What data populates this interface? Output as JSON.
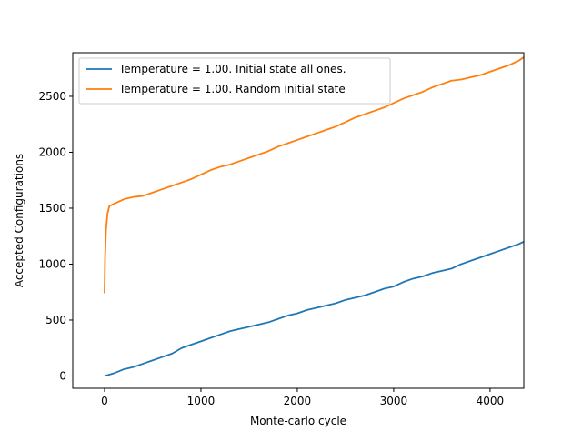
{
  "chart_data": {
    "type": "line",
    "title": "",
    "xlabel": "Monte-carlo cycle",
    "ylabel": "Accepted Configurations",
    "xlim": [
      -330,
      4350
    ],
    "ylim": [
      -110,
      2890
    ],
    "xticks": [
      0,
      1000,
      2000,
      3000,
      4000
    ],
    "yticks": [
      0,
      500,
      1000,
      1500,
      2000,
      2500
    ],
    "xtick_labels": [
      "0",
      "1000",
      "2000",
      "3000",
      "4000"
    ],
    "ytick_labels": [
      "0",
      "500",
      "1000",
      "1500",
      "2000",
      "2500"
    ],
    "grid": false,
    "legend_position": "top-left",
    "series": [
      {
        "name": "Temperature = 1.00. Initial state all ones.",
        "color": "#1f77b4",
        "x": [
          0,
          100,
          200,
          300,
          400,
          500,
          600,
          700,
          800,
          900,
          1000,
          1100,
          1200,
          1300,
          1400,
          1500,
          1600,
          1700,
          1800,
          1900,
          2000,
          2100,
          2200,
          2300,
          2400,
          2500,
          2600,
          2700,
          2800,
          2900,
          3000,
          3100,
          3200,
          3300,
          3400,
          3500,
          3600,
          3700,
          3800,
          3900,
          4000,
          4100,
          4200,
          4300,
          4350
        ],
        "y": [
          0,
          25,
          60,
          80,
          110,
          140,
          170,
          200,
          250,
          280,
          310,
          340,
          370,
          400,
          420,
          440,
          460,
          480,
          510,
          540,
          560,
          590,
          610,
          630,
          650,
          680,
          700,
          720,
          750,
          780,
          800,
          840,
          870,
          890,
          920,
          940,
          960,
          1000,
          1030,
          1060,
          1090,
          1120,
          1150,
          1180,
          1200
        ]
      },
      {
        "name": "Temperature = 1.00. Random initial state",
        "color": "#ff7f0e",
        "x": [
          0,
          5,
          15,
          30,
          50,
          100,
          200,
          300,
          400,
          500,
          600,
          700,
          800,
          900,
          1000,
          1100,
          1200,
          1300,
          1400,
          1500,
          1600,
          1700,
          1800,
          1900,
          2000,
          2100,
          2200,
          2300,
          2400,
          2500,
          2600,
          2700,
          2800,
          2900,
          3000,
          3100,
          3200,
          3300,
          3400,
          3500,
          3600,
          3700,
          3800,
          3900,
          4000,
          4100,
          4200,
          4300,
          4350
        ],
        "y": [
          740,
          1050,
          1300,
          1450,
          1520,
          1540,
          1580,
          1600,
          1610,
          1640,
          1670,
          1700,
          1730,
          1760,
          1800,
          1840,
          1870,
          1890,
          1920,
          1950,
          1980,
          2010,
          2050,
          2080,
          2110,
          2140,
          2170,
          2200,
          2230,
          2270,
          2310,
          2340,
          2370,
          2400,
          2440,
          2480,
          2510,
          2540,
          2580,
          2610,
          2640,
          2650,
          2670,
          2690,
          2720,
          2750,
          2780,
          2820,
          2850
        ]
      }
    ]
  }
}
